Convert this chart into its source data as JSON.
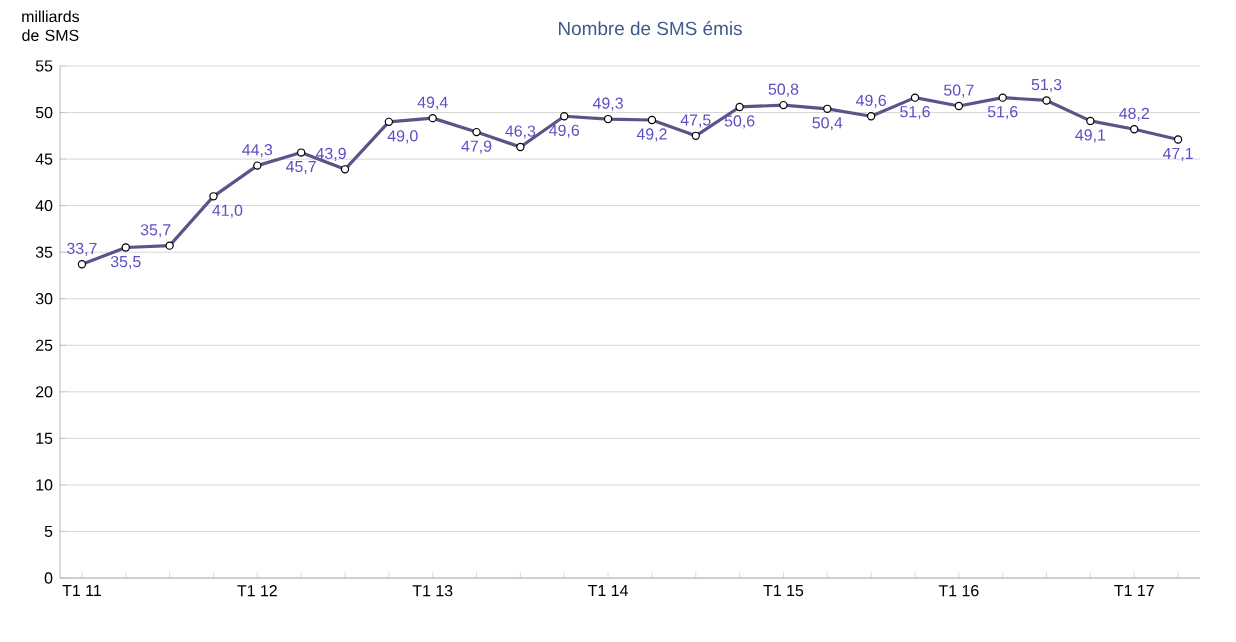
{
  "chart_data": {
    "type": "line",
    "title": "Nombre de SMS émis",
    "ylabel": "milliards de SMS",
    "categories": [
      "T1 11",
      null,
      null,
      null,
      "T1 12",
      null,
      null,
      null,
      "T1 13",
      null,
      null,
      null,
      "T1 14",
      null,
      null,
      null,
      "T1 15",
      null,
      null,
      null,
      "T1 16",
      null,
      null,
      null,
      "T1 17",
      null
    ],
    "series": [
      {
        "color": "#5a5488",
        "values": [
          33.7,
          35.5,
          35.7,
          41.0,
          44.3,
          45.7,
          43.9,
          49.0,
          49.4,
          47.9,
          46.3,
          49.6,
          49.3,
          49.2,
          47.5,
          50.6,
          50.8,
          50.4,
          49.6,
          51.6,
          50.7,
          51.6,
          51.3,
          49.1,
          48.2,
          47.1
        ],
        "value_labels": [
          "33,7",
          "35,5",
          "35,7",
          "41,0",
          "44,3",
          "45,7",
          "43,9",
          "49,0",
          "49,4",
          "47,9",
          "46,3",
          "49,6",
          "49,3",
          "49,2",
          "47,5",
          "50,6",
          "50,8",
          "50,4",
          "49,6",
          "51,6",
          "50,7",
          "51,6",
          "51,3",
          "49,1",
          "48,2",
          "47,1"
        ]
      }
    ],
    "ylim": [
      0,
      55
    ],
    "yticks": [
      0,
      5,
      10,
      15,
      20,
      25,
      30,
      35,
      40,
      45,
      50,
      55
    ],
    "grid": "y",
    "marker": "circle",
    "line_style": "solid"
  }
}
